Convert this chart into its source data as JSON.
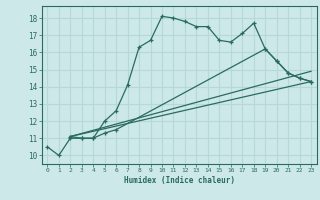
{
  "title": "",
  "xlabel": "Humidex (Indice chaleur)",
  "ylabel": "",
  "bg_color": "#cce8e8",
  "grid_color": "#a8d4d4",
  "line_color": "#2a6b5e",
  "xlim": [
    -0.5,
    23.5
  ],
  "ylim": [
    9.5,
    18.7
  ],
  "xticks": [
    0,
    1,
    2,
    3,
    4,
    5,
    6,
    7,
    8,
    9,
    10,
    11,
    12,
    13,
    14,
    15,
    16,
    17,
    18,
    19,
    20,
    21,
    22,
    23
  ],
  "yticks": [
    10,
    11,
    12,
    13,
    14,
    15,
    16,
    17,
    18
  ],
  "line1_x": [
    0,
    1,
    2,
    3,
    4,
    5,
    6,
    7,
    8,
    9,
    10,
    11,
    12,
    13,
    14,
    15,
    16,
    17,
    18,
    19,
    20,
    21,
    22,
    23
  ],
  "line1_y": [
    10.5,
    10.0,
    11.0,
    11.0,
    11.0,
    12.0,
    12.6,
    14.1,
    16.3,
    16.7,
    18.1,
    18.0,
    17.8,
    17.5,
    17.5,
    16.7,
    16.6,
    17.1,
    17.7,
    16.2,
    15.5,
    14.8,
    14.5,
    14.3
  ],
  "line2_x": [
    2,
    3,
    4,
    5,
    6,
    19,
    20,
    21,
    22,
    23
  ],
  "line2_y": [
    11.1,
    11.0,
    11.0,
    11.3,
    11.5,
    16.2,
    15.5,
    14.8,
    14.5,
    14.3
  ],
  "line3_x": [
    2,
    23
  ],
  "line3_y": [
    11.1,
    14.3
  ],
  "line4_x": [
    2,
    23
  ],
  "line4_y": [
    11.1,
    14.9
  ]
}
